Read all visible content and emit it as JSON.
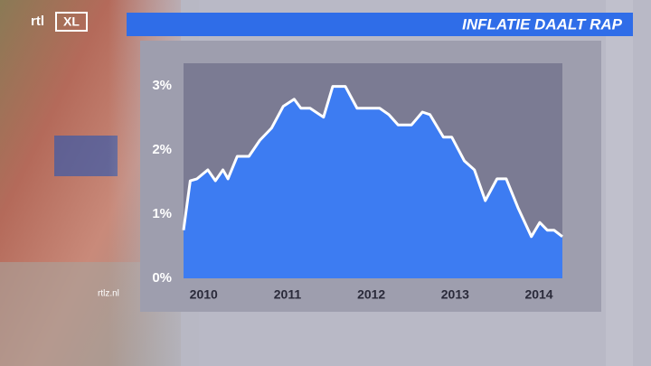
{
  "logo": {
    "text": "rtl",
    "badge": "XL"
  },
  "watermark": "rtlz.nl",
  "chart_data": {
    "type": "area",
    "title": "INFLATIE DAALT RAP",
    "x": [
      2009.76,
      2009.84,
      2009.92,
      2010.05,
      2010.14,
      2010.23,
      2010.29,
      2010.4,
      2010.54,
      2010.67,
      2010.81,
      2010.95,
      2011.08,
      2011.16,
      2011.27,
      2011.43,
      2011.54,
      2011.69,
      2011.83,
      2012.1,
      2012.21,
      2012.32,
      2012.48,
      2012.61,
      2012.7,
      2012.86,
      2012.96,
      2013.11,
      2013.23,
      2013.36,
      2013.5,
      2013.61,
      2013.75,
      2013.91,
      2014.01,
      2014.1,
      2014.18,
      2014.28
    ],
    "values": [
      0.75,
      1.52,
      1.55,
      1.69,
      1.52,
      1.69,
      1.55,
      1.9,
      1.9,
      2.15,
      2.34,
      2.68,
      2.79,
      2.65,
      2.65,
      2.51,
      2.99,
      2.99,
      2.65,
      2.65,
      2.55,
      2.39,
      2.39,
      2.59,
      2.55,
      2.2,
      2.2,
      1.83,
      1.69,
      1.21,
      1.55,
      1.55,
      1.1,
      0.65,
      0.87,
      0.75,
      0.75,
      0.65
    ],
    "color": "#3d7cf2",
    "line_color": "#ffffff",
    "xlim": [
      2009.76,
      2014.28
    ],
    "xticks": [
      {
        "value": 2010,
        "label": "2010"
      },
      {
        "value": 2011,
        "label": "2011"
      },
      {
        "value": 2012,
        "label": "2012"
      },
      {
        "value": 2013,
        "label": "2013"
      },
      {
        "value": 2014,
        "label": "2014"
      }
    ],
    "ylim": [
      0,
      3.35
    ],
    "yticks": [
      {
        "value": 0,
        "label": "0%"
      },
      {
        "value": 1,
        "label": "1%"
      },
      {
        "value": 2,
        "label": "2%"
      },
      {
        "value": 3,
        "label": "3%"
      }
    ],
    "grid": false
  }
}
